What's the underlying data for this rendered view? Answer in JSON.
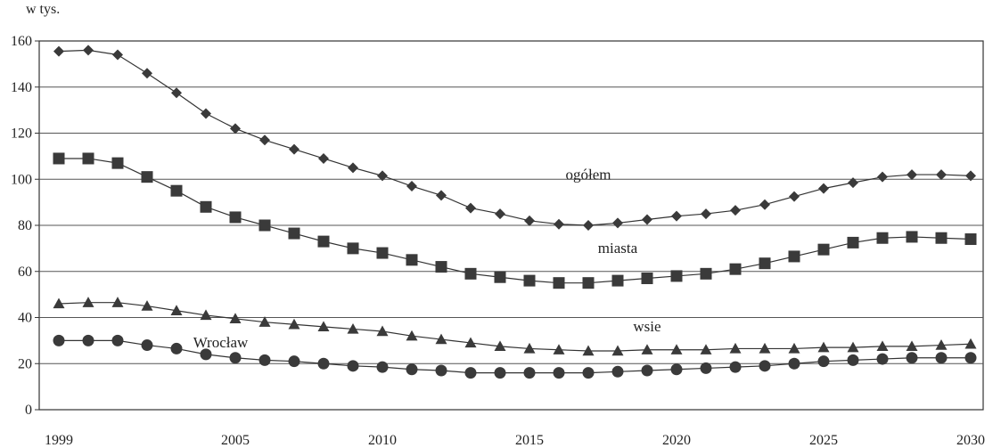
{
  "chart_data": {
    "type": "line",
    "y_unit_label": "w tys.",
    "x": [
      1999,
      2000,
      2001,
      2002,
      2003,
      2004,
      2005,
      2006,
      2007,
      2008,
      2009,
      2010,
      2011,
      2012,
      2013,
      2014,
      2015,
      2016,
      2017,
      2018,
      2019,
      2020,
      2021,
      2022,
      2023,
      2024,
      2025,
      2026,
      2027,
      2028,
      2029,
      2030
    ],
    "x_ticks": [
      1999,
      2005,
      2010,
      2015,
      2020,
      2025,
      2030
    ],
    "y_ticks": [
      0,
      20,
      40,
      60,
      80,
      100,
      120,
      140,
      160
    ],
    "ylim": [
      0,
      160
    ],
    "grid": "horizontal",
    "series": [
      {
        "name": "ogółem",
        "marker": "diamond",
        "values": [
          155.5,
          156,
          154,
          146,
          137.5,
          128.5,
          122,
          117,
          113,
          109,
          105,
          101.5,
          97,
          93,
          87.5,
          85,
          82,
          80.5,
          80,
          81,
          82.5,
          84,
          85,
          86.5,
          89,
          92.5,
          96,
          98.5,
          101,
          102,
          102,
          101.5
        ]
      },
      {
        "name": "miasta",
        "marker": "square",
        "values": [
          109,
          109,
          107,
          101,
          95,
          88,
          83.5,
          80,
          76.5,
          73,
          70,
          68,
          65,
          62,
          59,
          57.5,
          56,
          55,
          55,
          56,
          57,
          58,
          59,
          61,
          63.5,
          66.5,
          69.5,
          72.5,
          74.5,
          75,
          74.5,
          74
        ]
      },
      {
        "name": "wsie",
        "marker": "triangle",
        "values": [
          46,
          46.5,
          46.5,
          45,
          43,
          41,
          39.5,
          38,
          37,
          36,
          35,
          34,
          32,
          30.5,
          29,
          27.5,
          26.5,
          26,
          25.5,
          25.5,
          26,
          26,
          26,
          26.5,
          26.5,
          26.5,
          27,
          27,
          27.5,
          27.5,
          28,
          28.5
        ]
      },
      {
        "name": "Wrocław",
        "marker": "circle",
        "values": [
          30,
          30,
          30,
          28,
          26.5,
          24,
          22.5,
          21.5,
          21,
          20,
          19,
          18.5,
          17.5,
          17,
          16,
          16,
          16,
          16,
          16,
          16.5,
          17,
          17.5,
          18,
          18.5,
          19,
          20,
          21,
          21.5,
          22,
          22.5,
          22.5,
          22.5
        ]
      }
    ],
    "annotations": [
      {
        "text": "ogółem",
        "x": 2017,
        "y": 100
      },
      {
        "text": "miasta",
        "x": 2018,
        "y": 68
      },
      {
        "text": "wsie",
        "x": 2019,
        "y": 34
      },
      {
        "text": "Wrocław",
        "x": 2004.5,
        "y": 27
      }
    ]
  }
}
